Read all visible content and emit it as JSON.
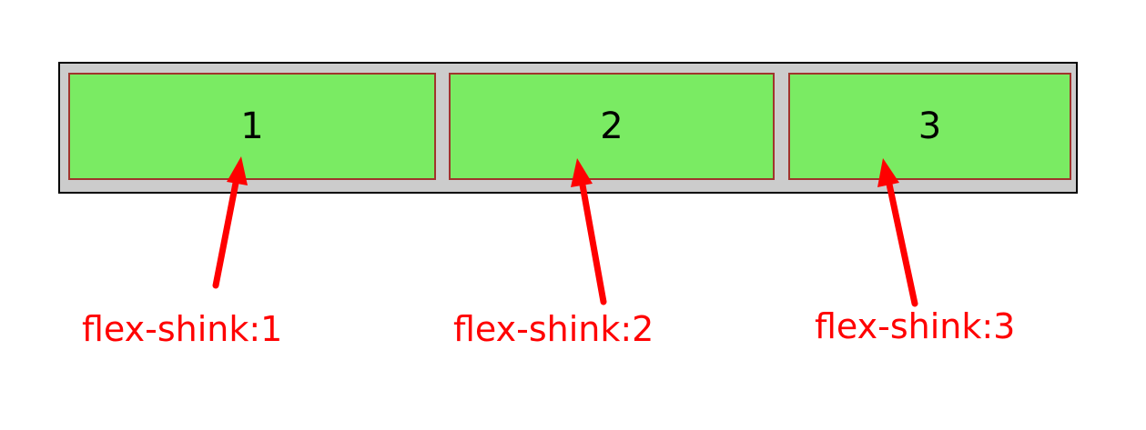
{
  "items": [
    {
      "number": "1",
      "annotation": "flex-shink:1"
    },
    {
      "number": "2",
      "annotation": "flex-shink:2"
    },
    {
      "number": "3",
      "annotation": "flex-shink:3"
    }
  ],
  "colors": {
    "container_background": "#cccccc",
    "container_border": "#000000",
    "item_background": "#7aeb63",
    "item_border": "#a0342c",
    "annotation": "#ff0000"
  }
}
